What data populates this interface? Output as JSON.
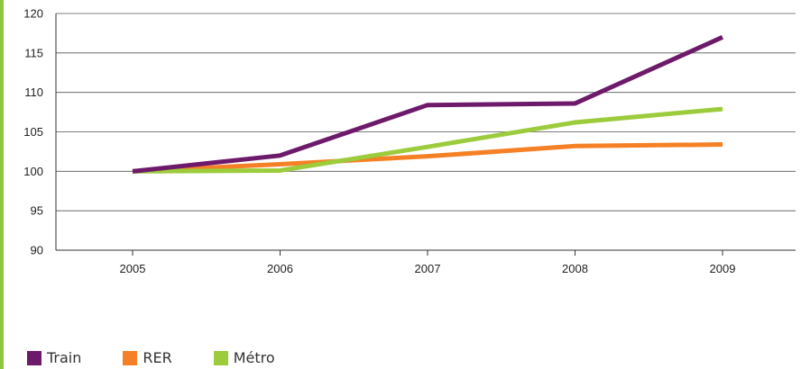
{
  "theme": {
    "accent_rule": "#8dc63f",
    "axis": "#333333",
    "grid": "#555555"
  },
  "chart_data": {
    "type": "line",
    "title": "",
    "xlabel": "",
    "ylabel": "",
    "categories": [
      "2005",
      "2006",
      "2007",
      "2008",
      "2009"
    ],
    "ylim": [
      90,
      120
    ],
    "yticks": [
      90,
      95,
      100,
      105,
      110,
      115,
      120
    ],
    "grid": true,
    "legend_position": "bottom-left",
    "series": [
      {
        "name": "Train",
        "color": "#6e1a6b",
        "values": [
          100,
          102,
          108.4,
          108.6,
          117
        ]
      },
      {
        "name": "RER",
        "color": "#f58025",
        "values": [
          100,
          100.9,
          101.9,
          103.2,
          103.4
        ]
      },
      {
        "name": "Métro",
        "color": "#9ccb3b",
        "values": [
          100,
          100.1,
          103.1,
          106.2,
          107.9
        ]
      }
    ]
  }
}
